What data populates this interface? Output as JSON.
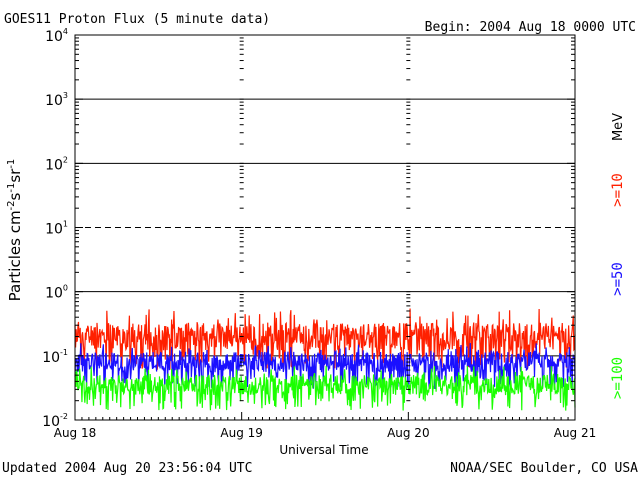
{
  "header": {
    "title": "GOES11 Proton Flux (5 minute data)",
    "begin": "Begin: 2004 Aug 18 0000 UTC"
  },
  "footer": {
    "updated": "Updated 2004 Aug 20 23:56:04 UTC",
    "credit": "NOAA/SEC Boulder, CO USA"
  },
  "chart_data": {
    "type": "line",
    "title": "GOES11 Proton Flux (5 minute data)",
    "xlabel": "Universal Time",
    "ylabel": {
      "base": "Particles cm",
      "e1": "-2",
      "s": "s",
      "e2": "-1",
      "sr": "sr",
      "e3": "-1"
    },
    "yscale": "log",
    "ylim": [
      0.01,
      10000
    ],
    "xlim": [
      0,
      3
    ],
    "x_ticks": [
      {
        "value": 0,
        "label": "Aug 18"
      },
      {
        "value": 1,
        "label": "Aug 19"
      },
      {
        "value": 2,
        "label": "Aug 20"
      },
      {
        "value": 3,
        "label": "Aug 21"
      }
    ],
    "y_ticks": [
      {
        "value": 0.01,
        "base": "10",
        "exp": "-2"
      },
      {
        "value": 0.1,
        "base": "10",
        "exp": "-1"
      },
      {
        "value": 1,
        "base": "10",
        "exp": "0"
      },
      {
        "value": 10,
        "base": "10",
        "exp": "1"
      },
      {
        "value": 100,
        "base": "10",
        "exp": "2"
      },
      {
        "value": 1000,
        "base": "10",
        "exp": "3"
      },
      {
        "value": 10000,
        "base": "10",
        "exp": "4"
      }
    ],
    "threshold_lines": [
      {
        "value": 0.1,
        "style": "solid"
      },
      {
        "value": 1,
        "style": "solid"
      },
      {
        "value": 10,
        "style": "dashed"
      },
      {
        "value": 100,
        "style": "solid"
      },
      {
        "value": 1000,
        "style": "solid"
      }
    ],
    "units_label": "MeV",
    "series": [
      {
        "name": ">=10",
        "color": "#ff2000",
        "typical": 0.2,
        "low": 0.06,
        "high": 0.55,
        "seed": 11
      },
      {
        "name": ">=50",
        "color": "#1a10ff",
        "typical": 0.08,
        "low": 0.03,
        "high": 0.16,
        "seed": 23
      },
      {
        "name": ">=100",
        "color": "#1aff00",
        "typical": 0.035,
        "low": 0.014,
        "high": 0.07,
        "seed": 37
      }
    ],
    "samples_per_day": 288
  }
}
